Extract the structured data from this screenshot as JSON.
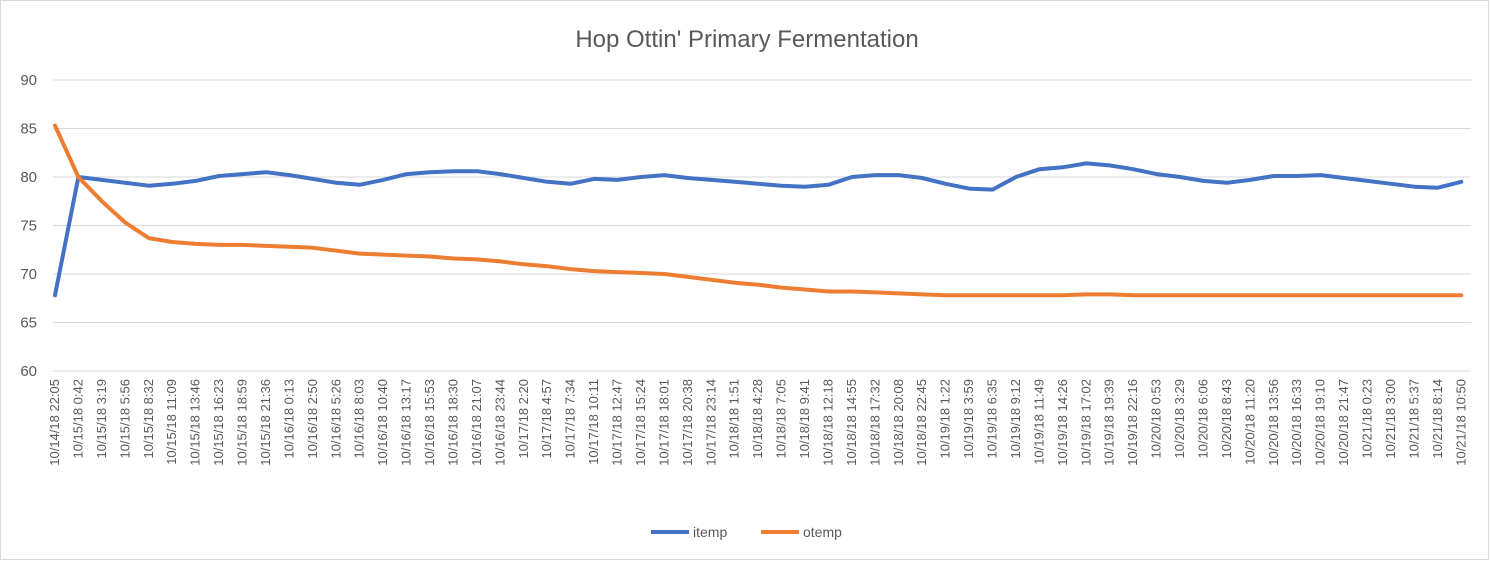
{
  "chart_data": {
    "type": "line",
    "title": "Hop Ottin' Primary Fermentation",
    "ylim": [
      60,
      90
    ],
    "yticks": [
      60,
      65,
      70,
      75,
      80,
      85,
      90
    ],
    "grid": true,
    "legend_position": "bottom",
    "x": [
      "10/14/18 22:05",
      "10/15/18 0:42",
      "10/15/18 3:19",
      "10/15/18 5:56",
      "10/15/18 8:32",
      "10/15/18 11:09",
      "10/15/18 13:46",
      "10/15/18 16:23",
      "10/15/18 18:59",
      "10/15/18 21:36",
      "10/16/18 0:13",
      "10/16/18 2:50",
      "10/16/18 5:26",
      "10/16/18 8:03",
      "10/16/18 10:40",
      "10/16/18 13:17",
      "10/16/18 15:53",
      "10/16/18 18:30",
      "10/16/18 21:07",
      "10/16/18 23:44",
      "10/17/18 2:20",
      "10/17/18 4:57",
      "10/17/18 7:34",
      "10/17/18 10:11",
      "10/17/18 12:47",
      "10/17/18 15:24",
      "10/17/18 18:01",
      "10/17/18 20:38",
      "10/17/18 23:14",
      "10/18/18 1:51",
      "10/18/18 4:28",
      "10/18/18 7:05",
      "10/18/18 9:41",
      "10/18/18 12:18",
      "10/18/18 14:55",
      "10/18/18 17:32",
      "10/18/18 20:08",
      "10/18/18 22:45",
      "10/19/18 1:22",
      "10/19/18 3:59",
      "10/19/18 6:35",
      "10/19/18 9:12",
      "10/19/18 11:49",
      "10/19/18 14:26",
      "10/19/18 17:02",
      "10/19/18 19:39",
      "10/19/18 22:16",
      "10/20/18 0:53",
      "10/20/18 3:29",
      "10/20/18 6:06",
      "10/20/18 8:43",
      "10/20/18 11:20",
      "10/20/18 13:56",
      "10/20/18 16:33",
      "10/20/18 19:10",
      "10/20/18 21:47",
      "10/21/18 0:23",
      "10/21/18 3:00",
      "10/21/18 5:37",
      "10/21/18 8:14",
      "10/21/18 10:50"
    ],
    "series": [
      {
        "name": "itemp",
        "color": "#4472c4",
        "values": [
          67.8,
          80.0,
          79.7,
          79.4,
          79.1,
          79.3,
          79.6,
          80.1,
          80.3,
          80.5,
          80.2,
          79.8,
          79.4,
          79.2,
          79.7,
          80.3,
          80.5,
          80.6,
          80.6,
          80.3,
          79.9,
          79.5,
          79.3,
          79.8,
          79.7,
          80.0,
          80.2,
          79.9,
          79.7,
          79.5,
          79.3,
          79.1,
          79.0,
          79.2,
          80.0,
          80.2,
          80.2,
          79.9,
          79.3,
          78.8,
          78.7,
          80.0,
          80.8,
          81.0,
          81.4,
          81.2,
          80.8,
          80.3,
          80.0,
          79.6,
          79.4,
          79.7,
          80.1,
          80.1,
          80.2,
          79.9,
          79.6,
          79.3,
          79.0,
          78.9,
          79.5
        ]
      },
      {
        "name": "otemp",
        "color": "#ed7d31",
        "values": [
          85.3,
          80.0,
          77.5,
          75.3,
          73.7,
          73.3,
          73.1,
          73.0,
          73.0,
          72.9,
          72.8,
          72.7,
          72.4,
          72.1,
          72.0,
          71.9,
          71.8,
          71.6,
          71.5,
          71.3,
          71.0,
          70.8,
          70.5,
          70.3,
          70.2,
          70.1,
          70.0,
          69.7,
          69.4,
          69.1,
          68.9,
          68.6,
          68.4,
          68.2,
          68.2,
          68.1,
          68.0,
          67.9,
          67.8,
          67.8,
          67.8,
          67.8,
          67.8,
          67.8,
          67.9,
          67.9,
          67.8,
          67.8,
          67.8,
          67.8,
          67.8,
          67.8,
          67.8,
          67.8,
          67.8,
          67.8,
          67.8,
          67.8,
          67.8,
          67.8,
          67.8
        ]
      }
    ]
  }
}
